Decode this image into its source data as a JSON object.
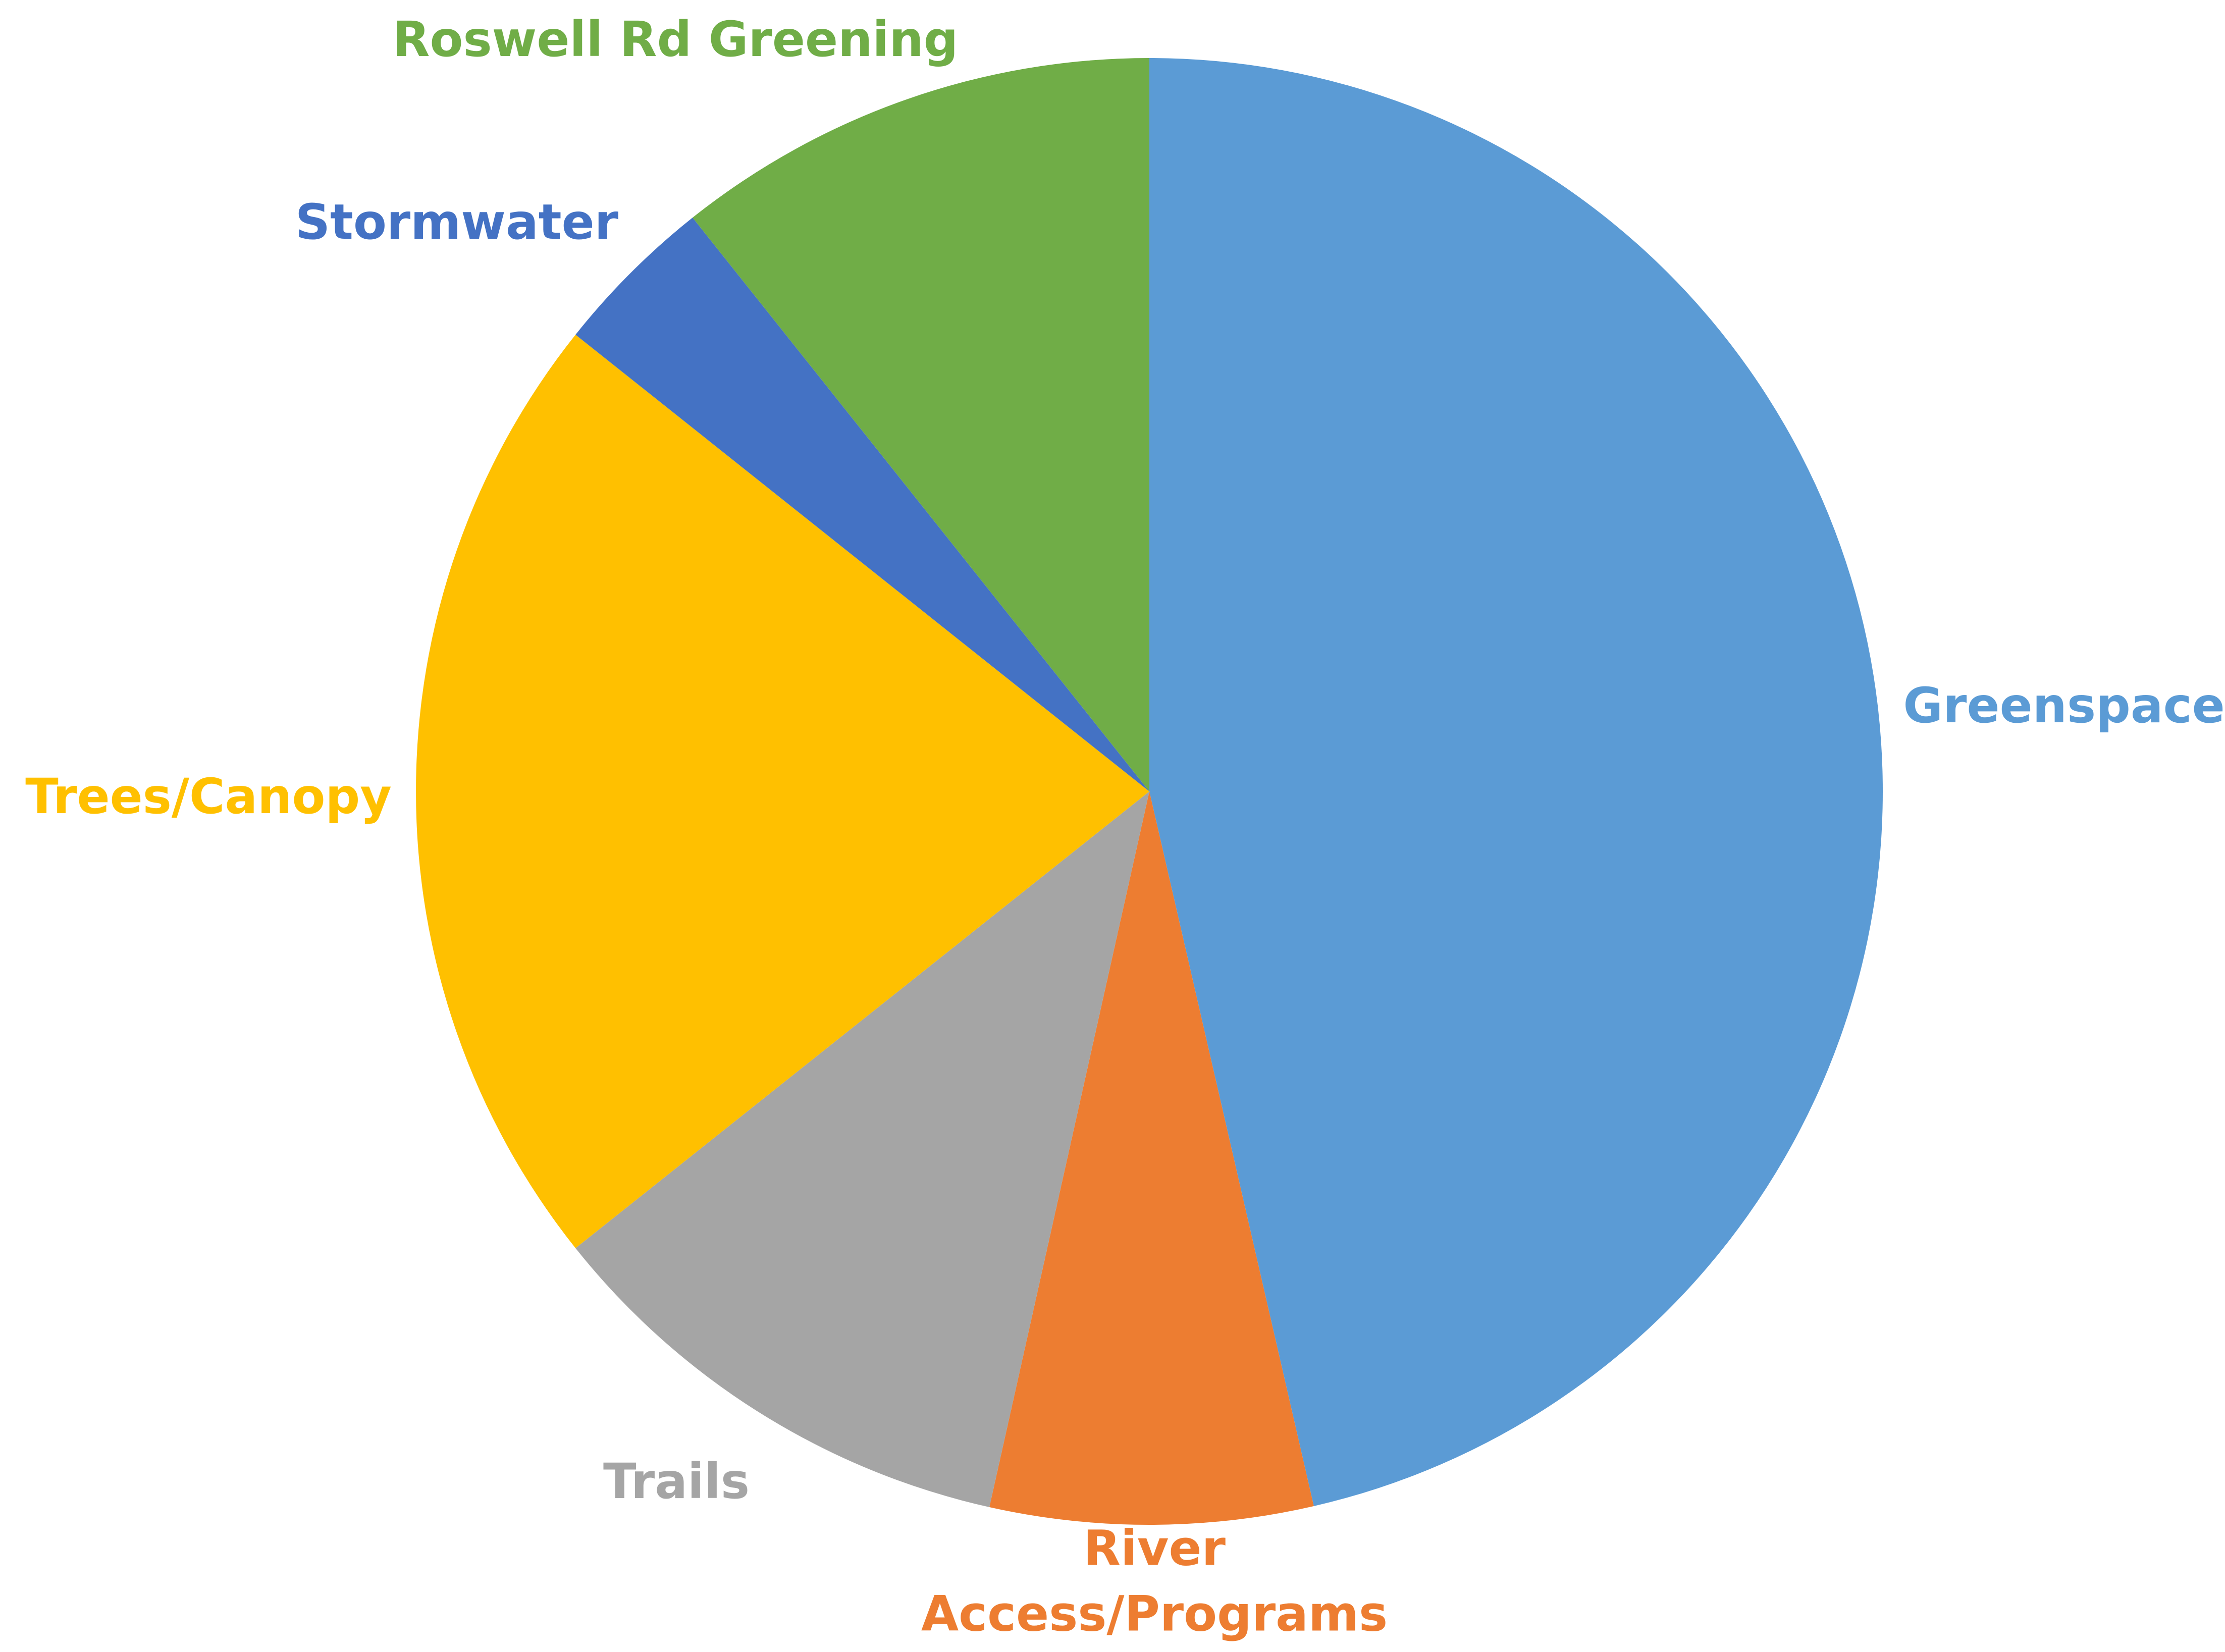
{
  "chart_data": {
    "type": "pie",
    "categories": [
      "Greenspace",
      "River Access/Programs",
      "Trails",
      "Trees/Canopy",
      "Stormwater",
      "Roswell Rd Greening"
    ],
    "values": [
      46.4,
      7.1,
      10.8,
      21.4,
      3.6,
      10.7
    ],
    "colors": [
      "#5b9bd5",
      "#ed7d31",
      "#a5a5a5",
      "#ffc000",
      "#4472c4",
      "#70ad47"
    ]
  }
}
